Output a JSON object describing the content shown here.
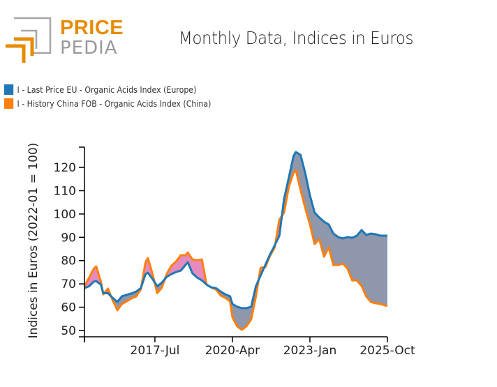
{
  "logo": {
    "word1": "PRICE",
    "word2": "PEDIA",
    "accent": "#e88b00",
    "gray": "#999999"
  },
  "chart_data": {
    "type": "line",
    "title": "Monthly Data, Indices in Euros",
    "xlabel": "",
    "ylabel": "Indices in Euros (2022-01 = 100)",
    "ylim": [
      47.3,
      128.7
    ],
    "xlim": [
      "2015-01",
      "2025-10"
    ],
    "yticks": [
      50,
      60,
      70,
      80,
      90,
      100,
      110,
      120
    ],
    "xticks": [
      {
        "label": "2017-Jul",
        "month": "2017-07"
      },
      {
        "label": "2020-Apr",
        "month": "2020-04"
      },
      {
        "label": "2023-Jan",
        "month": "2023-01"
      },
      {
        "label": "2025-Oct",
        "month": "2025-10"
      }
    ],
    "legend_position": "top-left",
    "fill_between": {
      "china_above_color": "#e68bbd",
      "europe_above_color": "#8e97ab"
    },
    "x": [
      "2015-01",
      "2015-03",
      "2015-05",
      "2015-06",
      "2015-08",
      "2015-09",
      "2015-11",
      "2016-01",
      "2016-03",
      "2016-05",
      "2016-07",
      "2016-09",
      "2016-11",
      "2017-01",
      "2017-03",
      "2017-04",
      "2017-06",
      "2017-08",
      "2017-10",
      "2017-12",
      "2018-02",
      "2018-04",
      "2018-06",
      "2018-08",
      "2018-09",
      "2018-11",
      "2019-01",
      "2019-03",
      "2019-05",
      "2019-07",
      "2019-09",
      "2019-11",
      "2020-01",
      "2020-03",
      "2020-04",
      "2020-06",
      "2020-08",
      "2020-10",
      "2020-12",
      "2021-02",
      "2021-04",
      "2021-06",
      "2021-08",
      "2021-10",
      "2021-12",
      "2022-02",
      "2022-04",
      "2022-06",
      "2022-07",
      "2022-09",
      "2022-11",
      "2023-01",
      "2023-03",
      "2023-05",
      "2023-07",
      "2023-09",
      "2023-11",
      "2024-01",
      "2024-03",
      "2024-05",
      "2024-07",
      "2024-09",
      "2024-11",
      "2025-01",
      "2025-03",
      "2025-05",
      "2025-07",
      "2025-10"
    ],
    "series": [
      {
        "name": "I - Last Price EU - Organic Acids Index (Europe)",
        "color": "#1f77b4",
        "values": [
          68.2,
          69.0,
          71.0,
          71.2,
          69.7,
          66.0,
          66.0,
          64.0,
          62.3,
          64.7,
          65.3,
          65.9,
          66.7,
          68.2,
          74.2,
          74.8,
          72.1,
          69.0,
          70.6,
          73.0,
          74.2,
          75.1,
          75.7,
          78.1,
          79.3,
          74.5,
          72.7,
          71.5,
          69.7,
          68.5,
          68.2,
          66.7,
          65.5,
          64.7,
          61.4,
          60.2,
          59.6,
          59.6,
          60.2,
          69.0,
          73.6,
          78.1,
          82.6,
          86.5,
          90.7,
          106.5,
          115.5,
          124.8,
          126.6,
          125.4,
          117.6,
          108.0,
          100.6,
          98.5,
          96.7,
          95.5,
          91.6,
          90.1,
          89.5,
          90.1,
          89.8,
          90.7,
          93.1,
          91.0,
          91.6,
          91.3,
          90.7,
          90.7
        ]
      },
      {
        "name": "I - History China FOB - Organic Acids Index (China)",
        "color": "#ff7f0e",
        "values": [
          69.0,
          72.7,
          76.6,
          77.5,
          71.0,
          65.5,
          68.0,
          63.0,
          58.7,
          61.4,
          62.5,
          63.8,
          64.6,
          67.6,
          79.3,
          81.1,
          74.2,
          66.0,
          68.5,
          74.2,
          77.8,
          79.6,
          82.3,
          82.3,
          83.5,
          80.5,
          80.2,
          80.5,
          69.7,
          68.5,
          67.6,
          65.0,
          64.0,
          62.5,
          55.7,
          51.8,
          50.3,
          51.8,
          54.8,
          64.6,
          76.9,
          77.2,
          82.0,
          85.6,
          97.6,
          100.6,
          111.6,
          117.6,
          118.8,
          110.4,
          102.6,
          95.5,
          87.1,
          89.2,
          81.7,
          85.6,
          78.1,
          78.1,
          78.7,
          76.6,
          71.5,
          71.5,
          69.1,
          64.6,
          62.2,
          61.7,
          61.4,
          60.5
        ]
      }
    ]
  }
}
